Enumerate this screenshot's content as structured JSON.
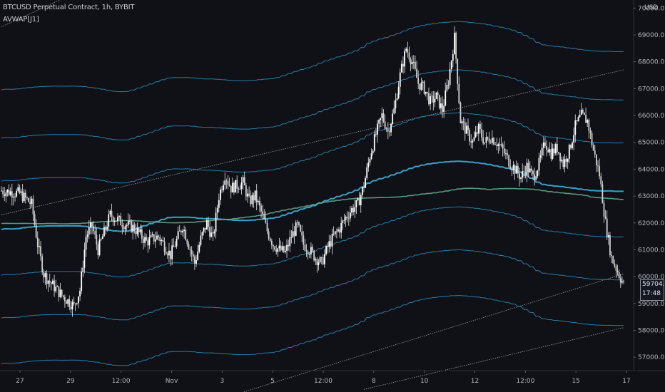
{
  "header": {
    "title": "BTCUSD Perpetual Contract, 1h, BYBIT",
    "indicator": "AVWAP[J1]"
  },
  "axis": {
    "currency": "USD"
  },
  "last_price": {
    "value": "59704.5",
    "countdown": "17:48"
  },
  "chart_data": {
    "type": "candlestick",
    "x_ticks": [
      "27",
      "29",
      "12:00",
      "Nov",
      "3",
      "5",
      "12:00",
      "8",
      "10",
      "12",
      "12:00",
      "15",
      "17"
    ],
    "y_ticks": [
      57000,
      58000,
      59000,
      60000,
      61000,
      62000,
      63000,
      64000,
      65000,
      66000,
      67000,
      68000,
      69000,
      70000
    ],
    "ylim": [
      56500,
      70300
    ],
    "colors": {
      "background": "#0f1116",
      "candle": "#e6e6e6",
      "band": "#2a8fc4",
      "band_bright": "#3fb8e8",
      "vwap_core": "#3fa7c7",
      "vwap_green": "#5fa88a",
      "trendline": "#9aa0a8"
    },
    "price_path": [
      [
        0,
        63200
      ],
      [
        3,
        63100
      ],
      [
        5,
        62700
      ],
      [
        6,
        61200
      ],
      [
        7,
        60100
      ],
      [
        8,
        59800
      ],
      [
        10,
        59300
      ],
      [
        12,
        58900
      ],
      [
        13,
        59500
      ],
      [
        14,
        61500
      ],
      [
        15,
        61900
      ],
      [
        16,
        61000
      ],
      [
        18,
        62300
      ],
      [
        20,
        62000
      ],
      [
        22,
        61800
      ],
      [
        24,
        61300
      ],
      [
        26,
        61500
      ],
      [
        28,
        60800
      ],
      [
        30,
        61900
      ],
      [
        31,
        61200
      ],
      [
        32,
        60500
      ],
      [
        33,
        61400
      ],
      [
        34,
        62000
      ],
      [
        35,
        61400
      ],
      [
        36,
        63000
      ],
      [
        37,
        63800
      ],
      [
        38,
        63300
      ],
      [
        40,
        63500
      ],
      [
        41,
        62800
      ],
      [
        42,
        63000
      ],
      [
        43,
        62400
      ],
      [
        44,
        61700
      ],
      [
        45,
        61200
      ],
      [
        46,
        61000
      ],
      [
        47,
        60900
      ],
      [
        48,
        61500
      ],
      [
        49,
        61900
      ],
      [
        50,
        61200
      ],
      [
        51,
        61000
      ],
      [
        52,
        60700
      ],
      [
        53,
        60500
      ],
      [
        54,
        61100
      ],
      [
        55,
        61500
      ],
      [
        56,
        61800
      ],
      [
        57,
        62200
      ],
      [
        58,
        62500
      ],
      [
        59,
        62700
      ],
      [
        60,
        63400
      ],
      [
        61,
        64500
      ],
      [
        62,
        65300
      ],
      [
        63,
        66000
      ],
      [
        64,
        65400
      ],
      [
        65,
        66200
      ],
      [
        66,
        67500
      ],
      [
        67,
        68500
      ],
      [
        68,
        68000
      ],
      [
        69,
        67200
      ],
      [
        70,
        67000
      ],
      [
        71,
        66500
      ],
      [
        72,
        66700
      ],
      [
        73,
        66200
      ],
      [
        74,
        67300
      ],
      [
        75,
        68900
      ],
      [
        76,
        65800
      ],
      [
        77,
        65400
      ],
      [
        78,
        65000
      ],
      [
        79,
        65500
      ],
      [
        80,
        65000
      ],
      [
        81,
        65200
      ],
      [
        82,
        65000
      ],
      [
        83,
        64700
      ],
      [
        84,
        64300
      ],
      [
        85,
        64000
      ],
      [
        86,
        63700
      ],
      [
        87,
        64100
      ],
      [
        88,
        63700
      ],
      [
        89,
        64200
      ],
      [
        90,
        65000
      ],
      [
        91,
        64600
      ],
      [
        92,
        64800
      ],
      [
        93,
        64200
      ],
      [
        94,
        64700
      ],
      [
        95,
        65600
      ],
      [
        96,
        66000
      ],
      [
        97,
        65800
      ],
      [
        98,
        64700
      ],
      [
        99,
        63800
      ],
      [
        100,
        62000
      ],
      [
        101,
        60700
      ],
      [
        102,
        60200
      ],
      [
        103,
        59700
      ]
    ]
  }
}
